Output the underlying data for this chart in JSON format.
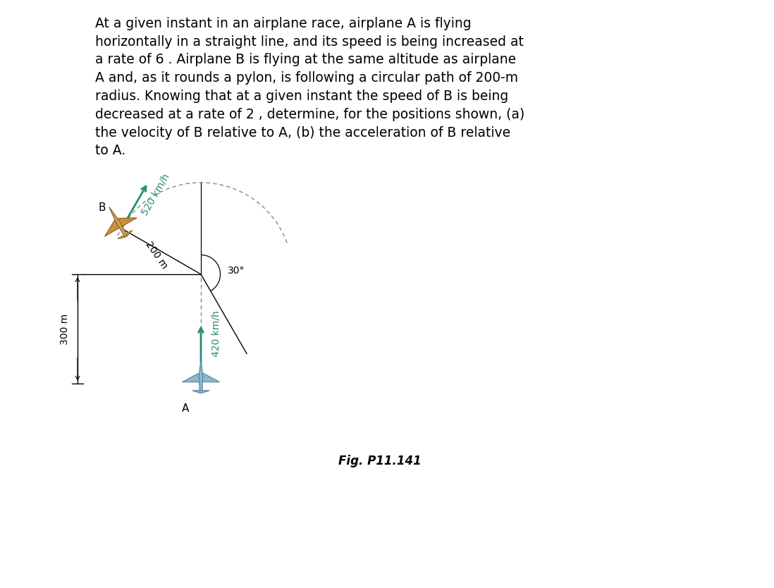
{
  "title_text": "At a given instant in an airplane race, airplane A is flying\nhorizontally in a straight line, and its speed is being increased at\na rate of 6 . Airplane B is flying at the same altitude as airplane\nA and, as it rounds a pylon, is following a circular path of 200-m\nradius. Knowing that at a given instant the speed of B is being\ndecreased at a rate of 2 , determine, for the positions shown, (a)\nthe velocity of B relative to A, (b) the acceleration of B relative\nto A.",
  "fig_label": "Fig. P11.141",
  "label_300m": "300 m",
  "label_200m": "200 m",
  "label_30deg": "30°",
  "label_420": "420 km/h",
  "label_520": "520 km/h",
  "label_A": "A",
  "label_B": "B",
  "bg_color": "#ffffff",
  "text_color": "#000000",
  "arrow_color": "#2a8a78",
  "dashed_color": "#888888",
  "line_color": "#000000",
  "plane_A_body": "#8ab4cc",
  "plane_A_wing": "#7aa0bb",
  "plane_B_body": "#d4a050",
  "plane_B_wing": "#c8903a"
}
